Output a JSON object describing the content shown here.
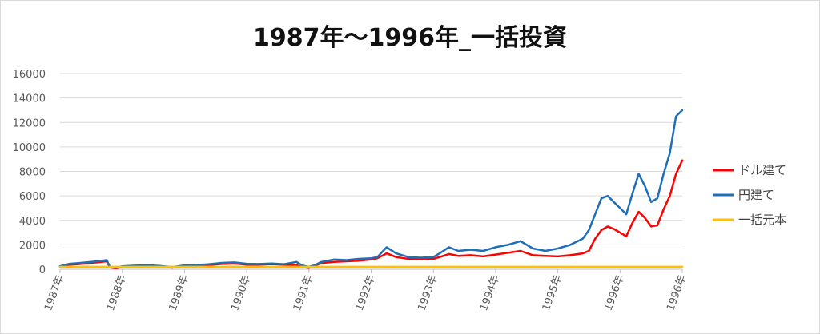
{
  "chart_data": {
    "type": "line",
    "title": "1987年～1996年_一括投資",
    "xlabel": "",
    "ylabel": "",
    "ylim": [
      0,
      16000
    ],
    "yticks": [
      "0",
      "2000",
      "4000",
      "6000",
      "8000",
      "10000",
      "12000",
      "14000",
      "16000"
    ],
    "xlim": [
      1987.0,
      1997.0
    ],
    "xticks": [
      "1987年",
      "1988年",
      "1989年",
      "1990年",
      "1991年",
      "1992年",
      "1993年",
      "1994年",
      "1995年",
      "1996年",
      "1996年"
    ],
    "grid": true,
    "legend_position": "right",
    "series": [
      {
        "name": "ドル建て",
        "color": "#ff0000",
        "x": [
          1987.0,
          1987.15,
          1987.3,
          1987.45,
          1987.6,
          1987.75,
          1987.8,
          1987.9,
          1988.0,
          1988.2,
          1988.4,
          1988.6,
          1988.8,
          1989.0,
          1989.2,
          1989.4,
          1989.6,
          1989.8,
          1990.0,
          1990.2,
          1990.4,
          1990.6,
          1990.8,
          1990.9,
          1991.0,
          1991.1,
          1991.2,
          1991.4,
          1991.6,
          1991.8,
          1992.0,
          1992.1,
          1992.25,
          1992.4,
          1992.6,
          1992.8,
          1993.0,
          1993.1,
          1993.25,
          1993.4,
          1993.6,
          1993.8,
          1994.0,
          1994.2,
          1994.4,
          1994.6,
          1994.8,
          1995.0,
          1995.2,
          1995.4,
          1995.5,
          1995.6,
          1995.7,
          1995.8,
          1995.9,
          1996.0,
          1996.1,
          1996.2,
          1996.3,
          1996.4,
          1996.5,
          1996.6,
          1996.7,
          1996.8,
          1996.9,
          1997.0
        ],
        "values": [
          200,
          380,
          420,
          500,
          560,
          650,
          150,
          80,
          200,
          260,
          300,
          250,
          130,
          280,
          300,
          350,
          430,
          470,
          380,
          380,
          420,
          380,
          330,
          180,
          120,
          300,
          500,
          600,
          650,
          700,
          800,
          900,
          1300,
          1000,
          850,
          800,
          850,
          1000,
          1250,
          1100,
          1150,
          1050,
          1200,
          1350,
          1500,
          1150,
          1100,
          1050,
          1150,
          1300,
          1500,
          2500,
          3200,
          3500,
          3300,
          3000,
          2700,
          3800,
          4700,
          4200,
          3500,
          3600,
          4900,
          6000,
          7800,
          8900
        ]
      },
      {
        "name": "円建て",
        "color": "#1f6fb8",
        "x": [
          1987.0,
          1987.15,
          1987.3,
          1987.45,
          1987.6,
          1987.75,
          1987.8,
          1987.9,
          1988.0,
          1988.2,
          1988.4,
          1988.6,
          1988.8,
          1989.0,
          1989.2,
          1989.4,
          1989.6,
          1989.8,
          1990.0,
          1990.2,
          1990.4,
          1990.6,
          1990.8,
          1990.9,
          1991.0,
          1991.1,
          1991.2,
          1991.4,
          1991.6,
          1991.8,
          1992.0,
          1992.1,
          1992.25,
          1992.4,
          1992.6,
          1992.8,
          1993.0,
          1993.1,
          1993.25,
          1993.4,
          1993.6,
          1993.8,
          1994.0,
          1994.2,
          1994.4,
          1994.6,
          1994.8,
          1995.0,
          1995.2,
          1995.4,
          1995.5,
          1995.6,
          1995.7,
          1995.8,
          1995.9,
          1996.0,
          1996.1,
          1996.2,
          1996.3,
          1996.4,
          1996.5,
          1996.6,
          1996.7,
          1996.8,
          1996.9,
          1997.0
        ],
        "values": [
          250,
          450,
          500,
          580,
          650,
          750,
          200,
          120,
          250,
          300,
          330,
          280,
          180,
          320,
          350,
          420,
          520,
          560,
          450,
          430,
          470,
          420,
          600,
          300,
          200,
          350,
          600,
          800,
          750,
          850,
          900,
          1000,
          1800,
          1300,
          1000,
          950,
          1000,
          1300,
          1800,
          1500,
          1600,
          1500,
          1800,
          2000,
          2300,
          1700,
          1500,
          1700,
          2000,
          2500,
          3200,
          4500,
          5800,
          6000,
          5500,
          5000,
          4500,
          6200,
          7800,
          6800,
          5500,
          5800,
          7800,
          9500,
          12500,
          13000
        ]
      },
      {
        "name": "一括元本",
        "color": "#ffc000",
        "x": [
          1987.0,
          1997.0
        ],
        "values": [
          200,
          200
        ]
      }
    ]
  }
}
